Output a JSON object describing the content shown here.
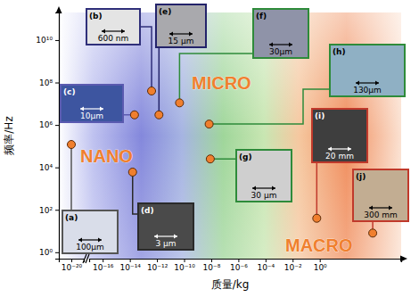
{
  "chart_data": [
    {
      "type": "scatter",
      "log": true,
      "color": "#f07f2e",
      "marker": "circle",
      "y_label": "频率/Hz",
      "xlim": [
        1e-21,
        1e-19
      ],
      "xticks": [
        {
          "value": 1e-20,
          "label": "10⁻²⁰"
        }
      ],
      "ylim": [
        0.5,
        200000000000.0
      ],
      "yticks": [
        {
          "value": 1,
          "label": "10⁰"
        },
        {
          "value": 100,
          "label": "10²"
        },
        {
          "value": 10000,
          "label": "10⁴"
        },
        {
          "value": 1000000,
          "label": "10⁶"
        },
        {
          "value": 100000000,
          "label": "10⁸"
        },
        {
          "value": 10000000000,
          "label": "10¹⁰"
        }
      ],
      "x": [
        1e-20
      ],
      "values": [
        120000
      ],
      "labels": [
        "(a)"
      ],
      "scale_bars": [
        "100μm"
      ]
    },
    {
      "type": "scatter",
      "log": true,
      "color": "#f07f2e",
      "marker": "circle",
      "tick_labels": "x",
      "x_label": "质量/kg",
      "annotations": [
        "NANO",
        "MICRO",
        "MACRO"
      ],
      "xlim": [
        1e-17,
        1000000
      ],
      "xticks": [
        {
          "value": 1e-16,
          "label": "10⁻¹⁶"
        },
        {
          "value": 1e-14,
          "label": "10⁻¹⁴"
        },
        {
          "value": 1e-12,
          "label": "10⁻¹²"
        },
        {
          "value": 1e-10,
          "label": "10⁻¹⁰"
        },
        {
          "value": 1e-08,
          "label": "10⁻⁸"
        },
        {
          "value": 1e-06,
          "label": "10⁻⁶"
        },
        {
          "value": 0.0001,
          "label": "10⁻⁴"
        },
        {
          "value": 0.01,
          "label": "10⁻²"
        },
        {
          "value": 1,
          "label": "10⁰"
        }
      ],
      "ylim": [
        0.5,
        200000000000.0
      ],
      "x": [
        4e-13,
        2.2e-14,
        1.6e-14,
        1.4e-12,
        4.6e-11,
        8.5e-09,
        7e-09,
        0.6,
        8000
      ],
      "values": [
        40000000,
        3000000,
        6000,
        3000000,
        11000000,
        25000,
        1100000,
        40,
        8
      ],
      "labels": [
        "(b)",
        "(c)",
        "(d)",
        "(e)",
        "(f)",
        "(g)",
        "(h)",
        "(i)",
        "(j)"
      ],
      "scale_bars": [
        "600 nm",
        "10μm",
        "3 μm",
        "15 μm",
        "30μm",
        "30 μm",
        "130μm",
        "20 mm",
        "300 mm"
      ]
    }
  ]
}
